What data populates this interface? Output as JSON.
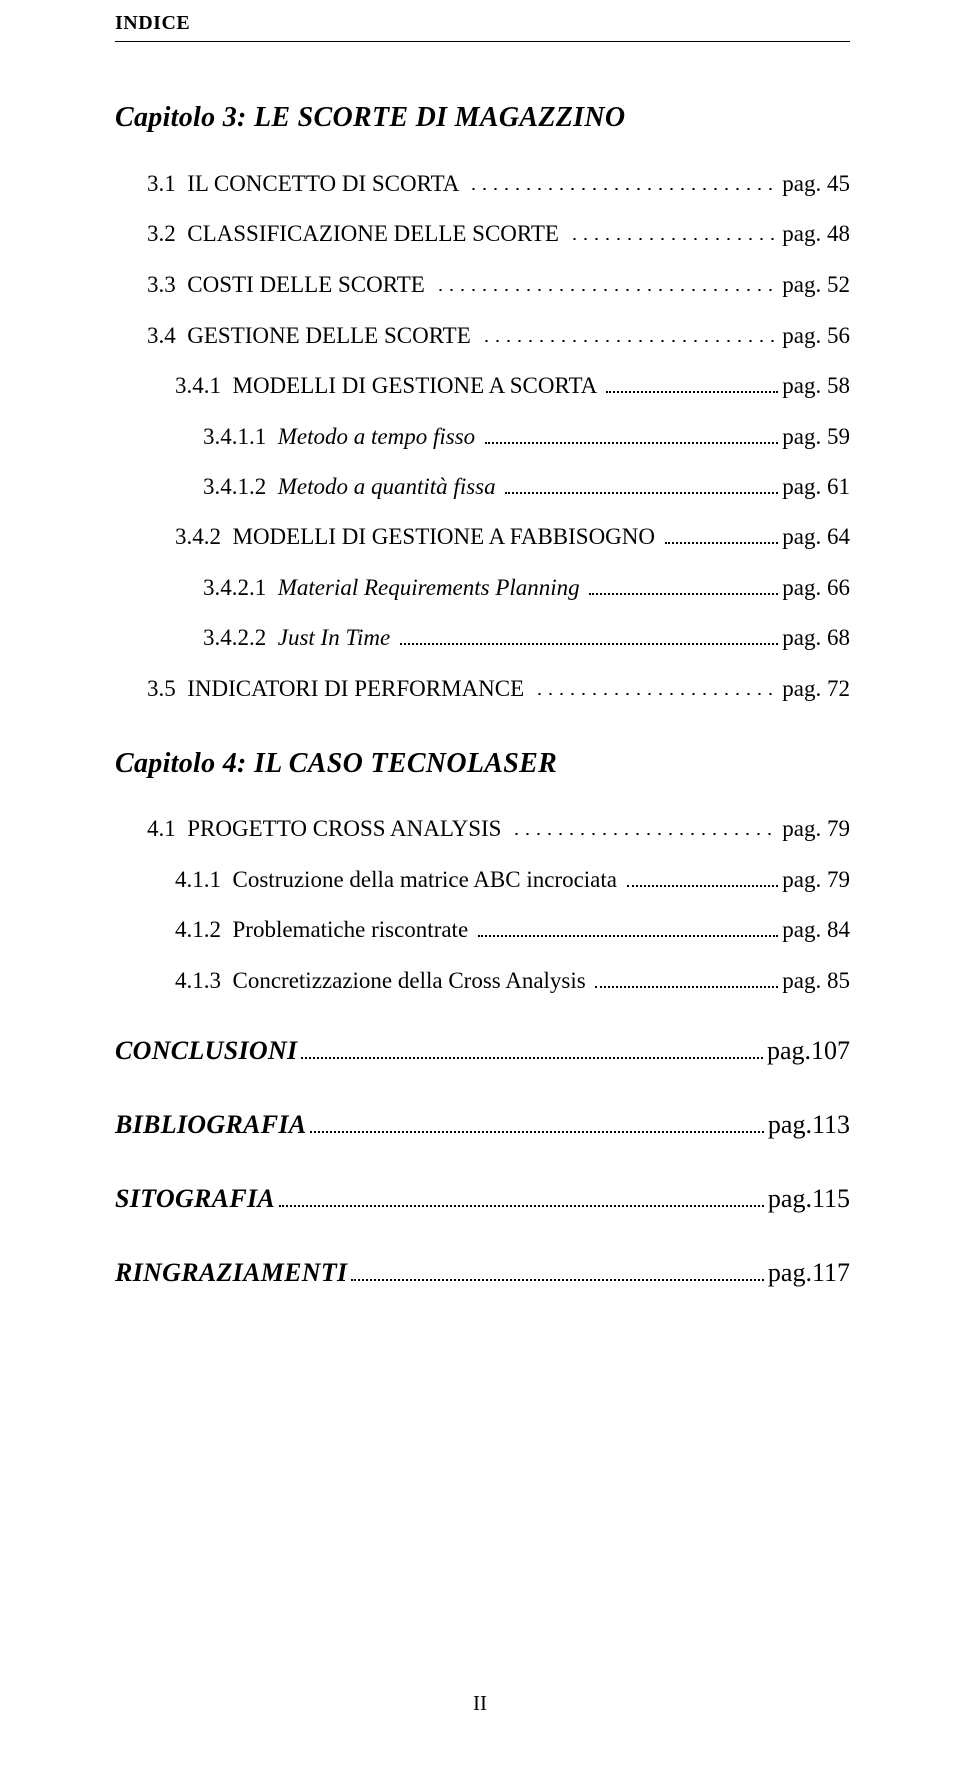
{
  "running_header": "INDICE",
  "page_number": "II",
  "pag_label": "pag.",
  "chapters": [
    {
      "heading": "Capitolo 3: LE SCORTE DI MAGAZZINO",
      "entries": [
        {
          "level": 1,
          "num": "3.1",
          "title": "IL CONCETTO DI SCORTA",
          "page": "45",
          "dots": "spaced",
          "italic": false
        },
        {
          "level": 1,
          "num": "3.2",
          "title": "CLASSIFICAZIONE DELLE SCORTE",
          "page": "48",
          "dots": "spaced",
          "italic": false
        },
        {
          "level": 1,
          "num": "3.3",
          "title": "COSTI DELLE SCORTE",
          "page": "52",
          "dots": "spaced",
          "italic": false
        },
        {
          "level": 1,
          "num": "3.4",
          "title": "GESTIONE DELLE SCORTE",
          "page": "56",
          "dots": "spaced",
          "italic": false
        },
        {
          "level": 2,
          "num": "3.4.1",
          "title": "MODELLI DI GESTIONE A SCORTA",
          "page": "58",
          "dots": "dotted",
          "italic": false
        },
        {
          "level": 3,
          "num": "3.4.1.1",
          "title": "Metodo a tempo fisso",
          "page": "59",
          "dots": "dotted",
          "italic": true
        },
        {
          "level": 3,
          "num": "3.4.1.2",
          "title": "Metodo a quantità fissa",
          "page": "61",
          "dots": "dotted",
          "italic": true
        },
        {
          "level": 2,
          "num": "3.4.2",
          "title": "MODELLI DI GESTIONE A FABBISOGNO",
          "page": "64",
          "dots": "dotted",
          "italic": false
        },
        {
          "level": 3,
          "num": "3.4.2.1",
          "title": "Material Requirements Planning",
          "page": "66",
          "dots": "dotted",
          "italic": true
        },
        {
          "level": 3,
          "num": "3.4.2.2",
          "title": "Just In Time",
          "page": "68",
          "dots": "dotted",
          "italic": true
        },
        {
          "level": 1,
          "num": "3.5",
          "title": "INDICATORI DI PERFORMANCE",
          "page": "72",
          "dots": "spaced",
          "italic": false
        }
      ]
    },
    {
      "heading": "Capitolo 4: IL CASO TECNOLASER",
      "entries": [
        {
          "level": 1,
          "num": "4.1",
          "title": "PROGETTO CROSS ANALYSIS",
          "page": "79",
          "dots": "spaced",
          "italic": false
        },
        {
          "level": 2,
          "num": "4.1.1",
          "title": "Costruzione della matrice ABC incrociata",
          "page": "79",
          "dots": "dotted",
          "italic": false
        },
        {
          "level": 2,
          "num": "4.1.2",
          "title": "Problematiche riscontrate",
          "page": "84",
          "dots": "dotted",
          "italic": false
        },
        {
          "level": 2,
          "num": "4.1.3",
          "title": "Concretizzazione della Cross Analysis",
          "page": "85",
          "dots": "dotted",
          "italic": false
        }
      ]
    }
  ],
  "endmatter": [
    {
      "title": "CONCLUSIONI",
      "page": "107"
    },
    {
      "title": "BIBLIOGRAFIA",
      "page": "113"
    },
    {
      "title": "SITOGRAFIA",
      "page": "115"
    },
    {
      "title": "RINGRAZIAMENTI",
      "page": "117"
    }
  ]
}
